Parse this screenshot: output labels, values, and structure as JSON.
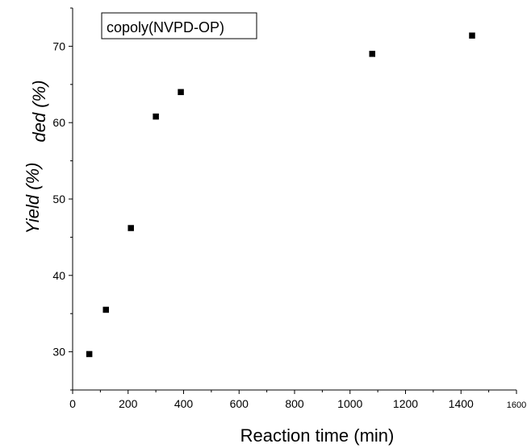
{
  "chart_data": {
    "type": "scatter",
    "title": "",
    "xlabel": "Reaction time (min)",
    "ylabel": "Yield (%)",
    "ylabel_fragment": "ded (%)",
    "xlim": [
      0,
      1600
    ],
    "ylim": [
      25,
      75
    ],
    "x_ticks": [
      0,
      200,
      400,
      600,
      800,
      1000,
      1200,
      1400,
      1600
    ],
    "y_ticks": [
      30,
      40,
      50,
      60,
      70
    ],
    "grid": false,
    "legend_position": "top-left",
    "series": [
      {
        "name": "copoly(NVPD-OP)",
        "marker": "square",
        "color": "#000000",
        "points": [
          {
            "x": 60,
            "y": 29.7
          },
          {
            "x": 120,
            "y": 35.5
          },
          {
            "x": 210,
            "y": 46.2
          },
          {
            "x": 300,
            "y": 60.8
          },
          {
            "x": 390,
            "y": 64.0
          },
          {
            "x": 1080,
            "y": 69.0
          },
          {
            "x": 1440,
            "y": 71.4
          }
        ]
      }
    ]
  }
}
